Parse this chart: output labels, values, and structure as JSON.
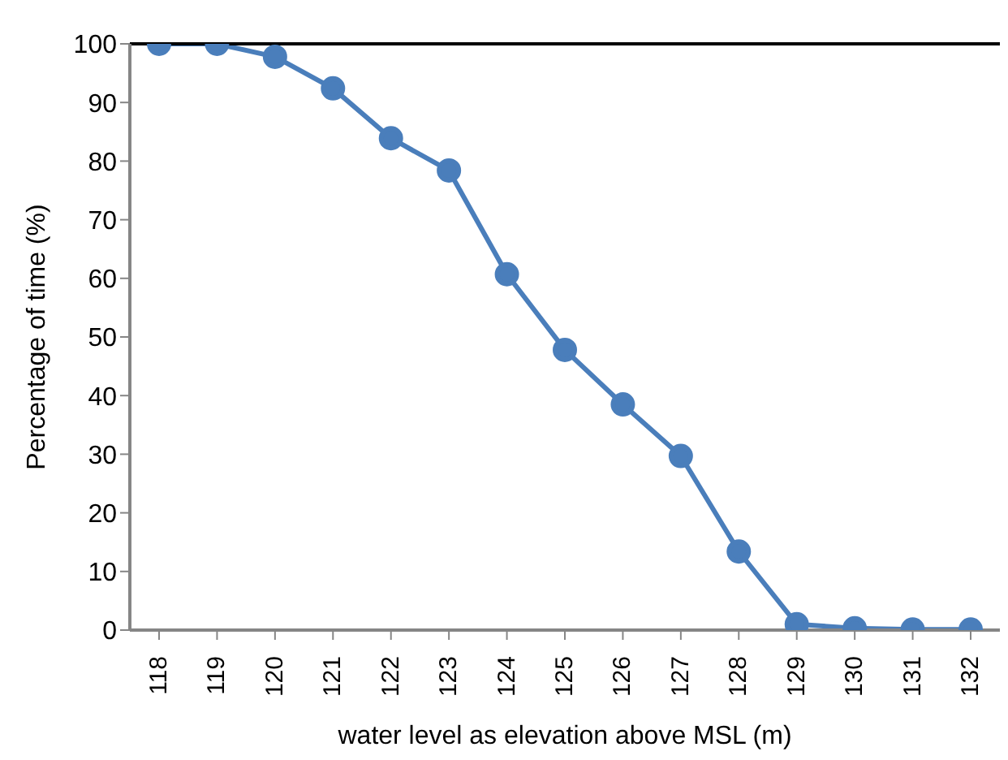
{
  "chart_data": {
    "type": "line",
    "xlabel": "water level as elevation above MSL (m)",
    "ylabel": "Percentage of time (%)",
    "categories": [
      "118",
      "119",
      "120",
      "121",
      "122",
      "123",
      "124",
      "125",
      "126",
      "127",
      "128",
      "129",
      "130",
      "131",
      "132"
    ],
    "series": [
      {
        "color": "#4a7ebb",
        "values": [
          100,
          100,
          97.8,
          92.4,
          83.9,
          78.4,
          60.7,
          47.8,
          38.5,
          29.7,
          13.4,
          1.0,
          0.3,
          0.1,
          0.1
        ]
      }
    ],
    "ylim": [
      0,
      100
    ],
    "yticks": [
      0,
      10,
      20,
      30,
      40,
      50,
      60,
      70,
      80,
      90,
      100
    ],
    "marker": "circle",
    "line_style": "solid",
    "grid": false
  }
}
